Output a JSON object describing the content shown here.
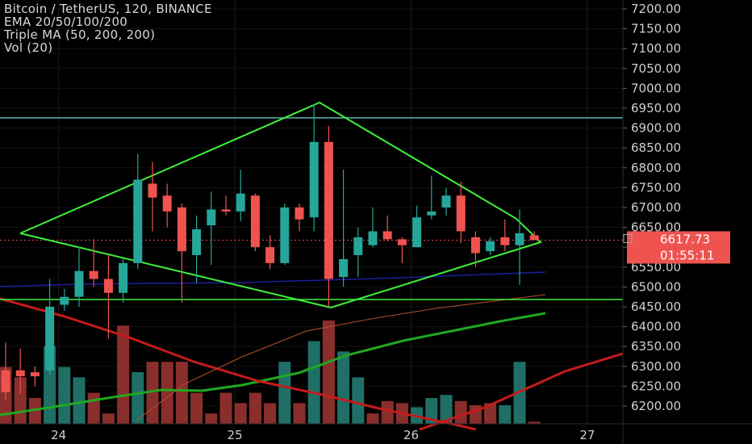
{
  "legend": {
    "symbol_line": "Bitcoin / TetherUS, 120, BINANCE",
    "ema_line": "EMA 20/50/100/200",
    "triple_ma_line": "Triple MA (50, 200, 200)",
    "vol_line": "Vol (20)"
  },
  "price_badge": {
    "price": "6617.73",
    "countdown": "01:55:11"
  },
  "colors": {
    "up": "#26a69a",
    "down": "#ef5350",
    "up_vol": "#1f6f67",
    "down_vol": "#8a2e2c",
    "pattern": "#3ef03a",
    "hline_teal": "#5ab7b0",
    "hline_green": "#3ef03a",
    "ma_green": "#1fa81f",
    "ma_red": "#c41b1b",
    "ma_thin": "#b5502a",
    "ma_navy": "#1c1f9c",
    "bg": "#000000"
  },
  "chart_data": {
    "type": "candlestick",
    "title": "Bitcoin / TetherUS, 120, BINANCE",
    "y_axis": {
      "min": 6175,
      "max": 7225,
      "ticks": [
        6200,
        6250,
        6300,
        6350,
        6400,
        6450,
        6500,
        6550,
        6600,
        6650,
        6700,
        6750,
        6800,
        6850,
        6900,
        6950,
        7000,
        7050,
        7100,
        7150,
        7200
      ]
    },
    "x_axis": {
      "ticks": [
        {
          "label": "24",
          "bar": 3.5
        },
        {
          "label": "25",
          "bar": 15.5
        },
        {
          "label": "26",
          "bar": 27.5
        },
        {
          "label": "27",
          "bar": 39.5
        }
      ]
    },
    "candles": [
      {
        "o": 6290,
        "h": 6360,
        "l": 6215,
        "c": 6235
      },
      {
        "o": 6290,
        "h": 6345,
        "l": 6230,
        "c": 6275
      },
      {
        "o": 6285,
        "h": 6300,
        "l": 6250,
        "c": 6275
      },
      {
        "o": 6290,
        "h": 6520,
        "l": 6280,
        "c": 6450
      },
      {
        "o": 6455,
        "h": 6495,
        "l": 6440,
        "c": 6475
      },
      {
        "o": 6475,
        "h": 6600,
        "l": 6450,
        "c": 6540
      },
      {
        "o": 6540,
        "h": 6620,
        "l": 6500,
        "c": 6520
      },
      {
        "o": 6520,
        "h": 6580,
        "l": 6370,
        "c": 6485
      },
      {
        "o": 6485,
        "h": 6570,
        "l": 6460,
        "c": 6560
      },
      {
        "o": 6560,
        "h": 6835,
        "l": 6545,
        "c": 6770
      },
      {
        "o": 6760,
        "h": 6815,
        "l": 6640,
        "c": 6725
      },
      {
        "o": 6730,
        "h": 6760,
        "l": 6650,
        "c": 6690
      },
      {
        "o": 6700,
        "h": 6710,
        "l": 6460,
        "c": 6590
      },
      {
        "o": 6580,
        "h": 6680,
        "l": 6510,
        "c": 6645
      },
      {
        "o": 6655,
        "h": 6740,
        "l": 6555,
        "c": 6695
      },
      {
        "o": 6695,
        "h": 6730,
        "l": 6680,
        "c": 6690
      },
      {
        "o": 6690,
        "h": 6795,
        "l": 6665,
        "c": 6735
      },
      {
        "o": 6730,
        "h": 6735,
        "l": 6590,
        "c": 6600
      },
      {
        "o": 6600,
        "h": 6630,
        "l": 6545,
        "c": 6560
      },
      {
        "o": 6560,
        "h": 6710,
        "l": 6555,
        "c": 6700
      },
      {
        "o": 6700,
        "h": 6710,
        "l": 6640,
        "c": 6670
      },
      {
        "o": 6675,
        "h": 6960,
        "l": 6640,
        "c": 6865
      },
      {
        "o": 6865,
        "h": 6905,
        "l": 6450,
        "c": 6520
      },
      {
        "o": 6525,
        "h": 6795,
        "l": 6500,
        "c": 6570
      },
      {
        "o": 6580,
        "h": 6650,
        "l": 6525,
        "c": 6625
      },
      {
        "o": 6605,
        "h": 6700,
        "l": 6600,
        "c": 6640
      },
      {
        "o": 6640,
        "h": 6680,
        "l": 6615,
        "c": 6620
      },
      {
        "o": 6620,
        "h": 6625,
        "l": 6560,
        "c": 6605
      },
      {
        "o": 6600,
        "h": 6705,
        "l": 6600,
        "c": 6675
      },
      {
        "o": 6680,
        "h": 6780,
        "l": 6670,
        "c": 6690
      },
      {
        "o": 6700,
        "h": 6750,
        "l": 6680,
        "c": 6730
      },
      {
        "o": 6730,
        "h": 6765,
        "l": 6610,
        "c": 6640
      },
      {
        "o": 6625,
        "h": 6640,
        "l": 6550,
        "c": 6585
      },
      {
        "o": 6590,
        "h": 6625,
        "l": 6580,
        "c": 6615
      },
      {
        "o": 6625,
        "h": 6670,
        "l": 6590,
        "c": 6605
      },
      {
        "o": 6605,
        "h": 6695,
        "l": 6505,
        "c": 6635
      },
      {
        "o": 6630,
        "h": 6640,
        "l": 6618,
        "c": 6618
      }
    ],
    "volume_colors": [
      "down",
      "down",
      "down",
      "up",
      "up",
      "up",
      "down",
      "down",
      "down",
      "up",
      "down",
      "down",
      "down",
      "down",
      "down",
      "down",
      "down",
      "down",
      "down",
      "up",
      "down",
      "up",
      "down",
      "up",
      "up",
      "down",
      "down",
      "down",
      "up",
      "up",
      "up",
      "down",
      "down",
      "down",
      "up",
      "up",
      "down"
    ],
    "volume_ratio": [
      0.55,
      0.45,
      0.25,
      0.75,
      0.55,
      0.45,
      0.3,
      0.1,
      0.95,
      0.5,
      0.6,
      0.6,
      0.6,
      0.3,
      0.1,
      0.3,
      0.2,
      0.3,
      0.2,
      0.6,
      0.2,
      0.8,
      1.0,
      0.7,
      0.45,
      0.1,
      0.22,
      0.2,
      0.16,
      0.25,
      0.28,
      0.22,
      0.18,
      0.2,
      0.18,
      0.6,
      0.02
    ]
  }
}
